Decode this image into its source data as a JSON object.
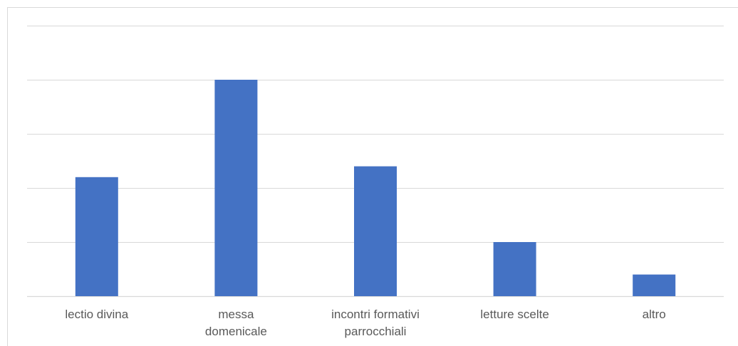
{
  "chart_data": {
    "type": "bar",
    "categories": [
      [
        "lectio divina"
      ],
      [
        "messa",
        "domenicale"
      ],
      [
        "incontri formativi",
        "parrocchiali"
      ],
      [
        "letture scelte"
      ],
      [
        "altro"
      ]
    ],
    "values": [
      2.2,
      4.0,
      2.4,
      1.0,
      0.4
    ],
    "ylim": [
      0,
      5
    ],
    "grid": true,
    "y_tick_labels_shown": false,
    "legend": "none",
    "colors": {
      "bar": "#4472c4",
      "gridline": "#d9d9d9",
      "tick_label": "#595959"
    }
  }
}
